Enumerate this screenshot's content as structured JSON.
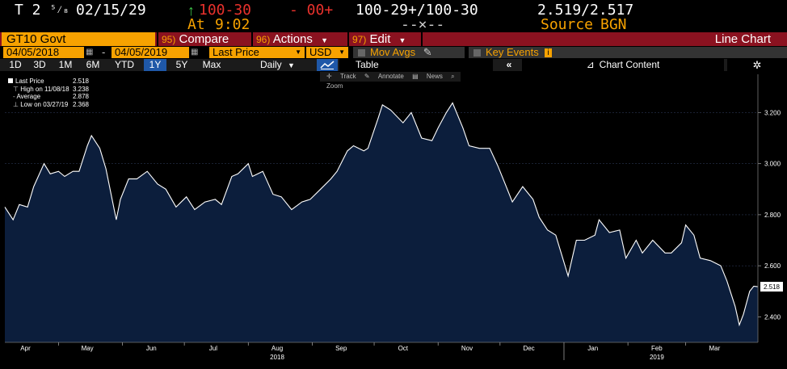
{
  "header": {
    "security_short": "T 2",
    "coupon_frac": "⁵⁄₈",
    "maturity": "02/15/29",
    "up_arrow": "↑",
    "last": "100-30",
    "at_label": "At",
    "time": "9:02",
    "change": "- 00+",
    "bid_ask": "100-29+/100-30",
    "mid_dash": "--×--",
    "yields": "2.519/2.517",
    "source_label": "Source",
    "source": "BGN"
  },
  "command_bar": {
    "ticker": "GT10 Govt",
    "compare_num": "95)",
    "compare": "Compare",
    "actions_num": "96)",
    "actions": "Actions",
    "edit_num": "97)",
    "edit": "Edit",
    "chart_type": "Line Chart"
  },
  "controls": {
    "start_date": "04/05/2018",
    "dash": "-",
    "end_date": "04/05/2019",
    "field": "Last Price",
    "currency": "USD",
    "mov_avgs": "Mov Avgs",
    "key_events": "Key Events",
    "key_events_badge": "i"
  },
  "range_bar": {
    "ranges": [
      "1D",
      "3D",
      "1M",
      "6M",
      "YTD",
      "1Y",
      "5Y",
      "Max"
    ],
    "selected": "1Y",
    "frequency": "Daily",
    "table_label": "Table",
    "chart_content_label": "Chart Content"
  },
  "chart_tools": {
    "track": "Track",
    "annotate": "Annotate",
    "news": "News",
    "zoom": "Zoom"
  },
  "legend": {
    "last_price_label": "Last Price",
    "last_price_value": "2.518",
    "high_label": "High on 11/08/18",
    "high_value": "3.238",
    "average_label": "Average",
    "average_value": "2.878",
    "low_label": "Low on 03/27/19",
    "low_value": "2.368"
  },
  "colors": {
    "amber": "#f7a200",
    "command_bar": "#8b1220",
    "area_fill": "#0c1e3c",
    "line": "#ffffff",
    "selected_range": "#1f58a8"
  },
  "chart_data": {
    "type": "area",
    "title": "",
    "xlabel": "",
    "ylabel": "",
    "x_start": "2018-04-05",
    "x_end": "2019-04-05",
    "ylim": [
      2.3,
      3.35
    ],
    "y_ticks": [
      "2.400",
      "2.600",
      "2.800",
      "3.000",
      "3.200"
    ],
    "month_ticks": [
      "Apr",
      "May",
      "Jun",
      "Jul",
      "Aug",
      "Sep",
      "Oct",
      "Nov",
      "Dec",
      "Jan",
      "Feb",
      "Mar"
    ],
    "year_labels": [
      "2018",
      "2019"
    ],
    "last_value_label": "2.518",
    "series": [
      {
        "values": [
          [
            "2018-04-05",
            2.83
          ],
          [
            "2018-04-09",
            2.78
          ],
          [
            "2018-04-12",
            2.84
          ],
          [
            "2018-04-16",
            2.83
          ],
          [
            "2018-04-19",
            2.91
          ],
          [
            "2018-04-24",
            3.0
          ],
          [
            "2018-04-27",
            2.96
          ],
          [
            "2018-05-01",
            2.97
          ],
          [
            "2018-05-04",
            2.95
          ],
          [
            "2018-05-08",
            2.97
          ],
          [
            "2018-05-11",
            2.97
          ],
          [
            "2018-05-15",
            3.07
          ],
          [
            "2018-05-17",
            3.11
          ],
          [
            "2018-05-21",
            3.06
          ],
          [
            "2018-05-24",
            2.98
          ],
          [
            "2018-05-29",
            2.78
          ],
          [
            "2018-05-31",
            2.86
          ],
          [
            "2018-06-04",
            2.94
          ],
          [
            "2018-06-08",
            2.94
          ],
          [
            "2018-06-13",
            2.97
          ],
          [
            "2018-06-18",
            2.92
          ],
          [
            "2018-06-22",
            2.9
          ],
          [
            "2018-06-27",
            2.83
          ],
          [
            "2018-07-02",
            2.87
          ],
          [
            "2018-07-06",
            2.82
          ],
          [
            "2018-07-11",
            2.85
          ],
          [
            "2018-07-16",
            2.86
          ],
          [
            "2018-07-19",
            2.84
          ],
          [
            "2018-07-24",
            2.95
          ],
          [
            "2018-07-27",
            2.96
          ],
          [
            "2018-08-01",
            3.0
          ],
          [
            "2018-08-03",
            2.95
          ],
          [
            "2018-08-08",
            2.97
          ],
          [
            "2018-08-13",
            2.88
          ],
          [
            "2018-08-17",
            2.87
          ],
          [
            "2018-08-22",
            2.82
          ],
          [
            "2018-08-27",
            2.85
          ],
          [
            "2018-08-31",
            2.86
          ],
          [
            "2018-09-05",
            2.9
          ],
          [
            "2018-09-10",
            2.94
          ],
          [
            "2018-09-13",
            2.97
          ],
          [
            "2018-09-18",
            3.05
          ],
          [
            "2018-09-21",
            3.07
          ],
          [
            "2018-09-26",
            3.05
          ],
          [
            "2018-09-28",
            3.06
          ],
          [
            "2018-10-03",
            3.18
          ],
          [
            "2018-10-05",
            3.23
          ],
          [
            "2018-10-09",
            3.21
          ],
          [
            "2018-10-15",
            3.16
          ],
          [
            "2018-10-19",
            3.2
          ],
          [
            "2018-10-24",
            3.1
          ],
          [
            "2018-10-29",
            3.09
          ],
          [
            "2018-11-01",
            3.14
          ],
          [
            "2018-11-05",
            3.2
          ],
          [
            "2018-11-08",
            3.238
          ],
          [
            "2018-11-13",
            3.14
          ],
          [
            "2018-11-16",
            3.07
          ],
          [
            "2018-11-21",
            3.06
          ],
          [
            "2018-11-26",
            3.06
          ],
          [
            "2018-11-30",
            2.99
          ],
          [
            "2018-12-04",
            2.91
          ],
          [
            "2018-12-07",
            2.85
          ],
          [
            "2018-12-12",
            2.91
          ],
          [
            "2018-12-17",
            2.86
          ],
          [
            "2018-12-20",
            2.79
          ],
          [
            "2018-12-24",
            2.74
          ],
          [
            "2018-12-28",
            2.72
          ],
          [
            "2019-01-03",
            2.56
          ],
          [
            "2019-01-07",
            2.7
          ],
          [
            "2019-01-11",
            2.7
          ],
          [
            "2019-01-16",
            2.72
          ],
          [
            "2019-01-18",
            2.78
          ],
          [
            "2019-01-23",
            2.73
          ],
          [
            "2019-01-28",
            2.74
          ],
          [
            "2019-01-31",
            2.63
          ],
          [
            "2019-02-05",
            2.7
          ],
          [
            "2019-02-08",
            2.65
          ],
          [
            "2019-02-13",
            2.7
          ],
          [
            "2019-02-19",
            2.65
          ],
          [
            "2019-02-22",
            2.65
          ],
          [
            "2019-02-27",
            2.69
          ],
          [
            "2019-03-01",
            2.76
          ],
          [
            "2019-03-05",
            2.72
          ],
          [
            "2019-03-08",
            2.63
          ],
          [
            "2019-03-13",
            2.62
          ],
          [
            "2019-03-18",
            2.6
          ],
          [
            "2019-03-21",
            2.54
          ],
          [
            "2019-03-25",
            2.44
          ],
          [
            "2019-03-27",
            2.368
          ],
          [
            "2019-03-29",
            2.41
          ],
          [
            "2019-04-01",
            2.5
          ],
          [
            "2019-04-03",
            2.52
          ],
          [
            "2019-04-05",
            2.518
          ]
        ]
      }
    ]
  }
}
